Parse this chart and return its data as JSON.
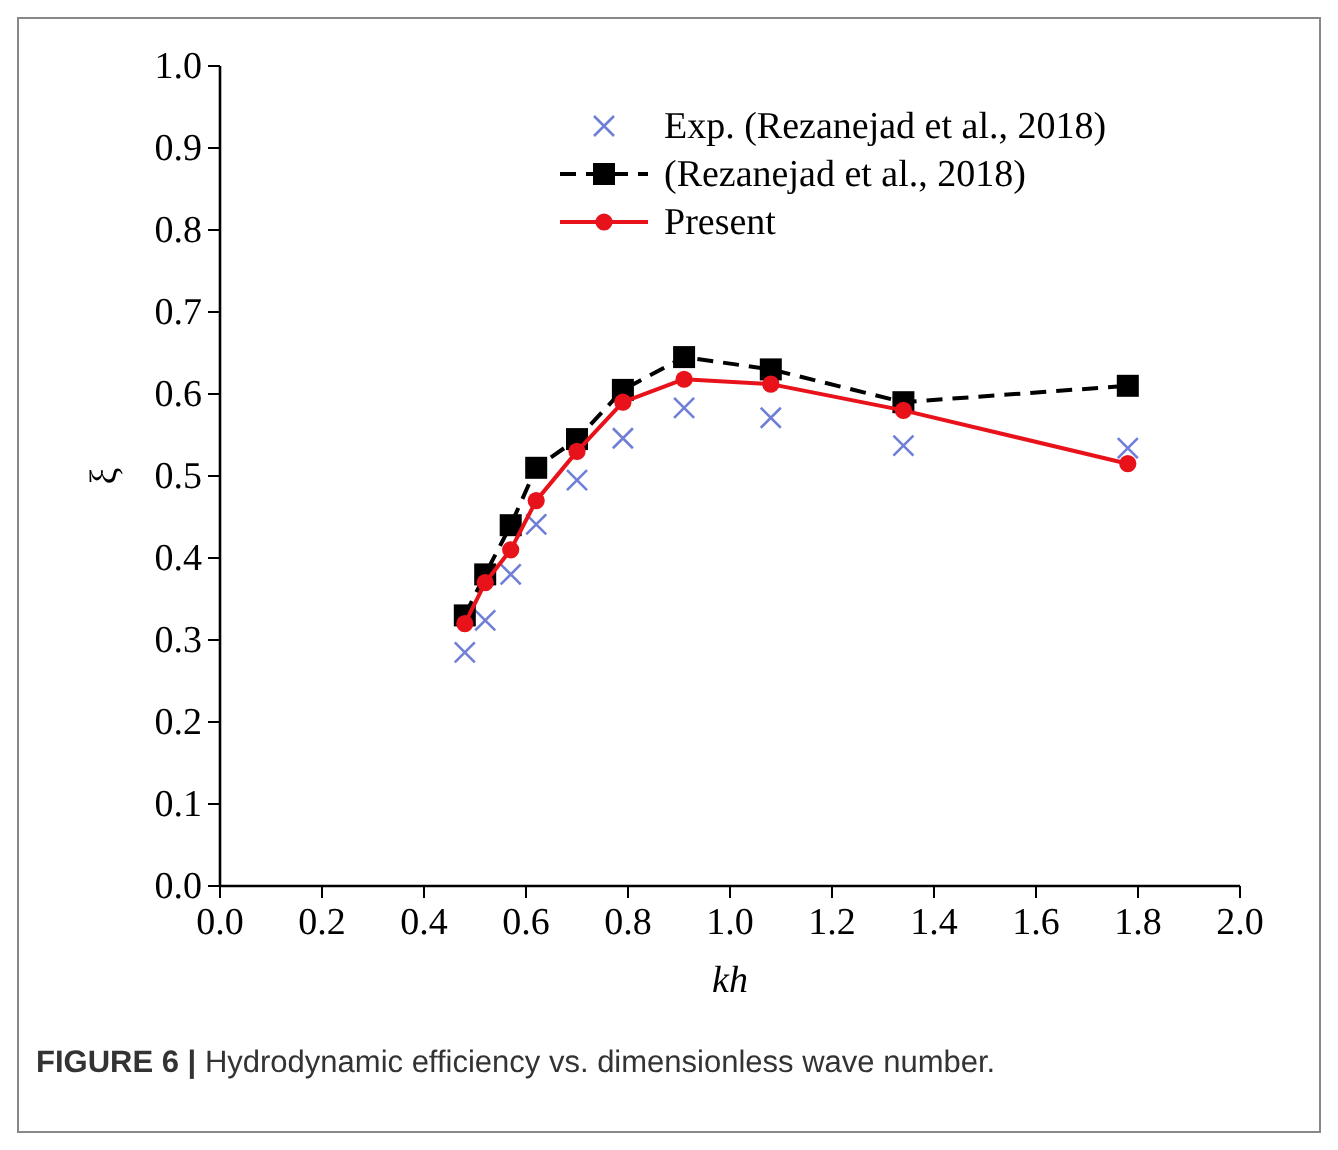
{
  "chart_data": {
    "type": "line",
    "xlabel": "kh",
    "ylabel": "ξ",
    "x": [
      0.48,
      0.52,
      0.57,
      0.62,
      0.7,
      0.79,
      0.91,
      1.08,
      1.34,
      1.78
    ],
    "series": [
      {
        "name": "Exp. (Rezanejad et al., 2018)",
        "type": "scatter",
        "color": "#6f7fd8",
        "marker": "cross",
        "values": [
          0.285,
          0.324,
          0.38,
          0.441,
          0.495,
          0.546,
          0.583,
          0.571,
          0.537,
          0.534
        ]
      },
      {
        "name": "(Rezanejad et al., 2018)",
        "color": "#000000",
        "marker": "square",
        "line_style": "dashed",
        "values": [
          0.33,
          0.38,
          0.44,
          0.51,
          0.545,
          0.605,
          0.645,
          0.63,
          0.59,
          0.61
        ]
      },
      {
        "name": "Present",
        "color": "#e8121b",
        "marker": "circle",
        "line_style": "solid",
        "values": [
          0.32,
          0.37,
          0.41,
          0.47,
          0.53,
          0.59,
          0.618,
          0.612,
          0.58,
          0.515
        ]
      }
    ],
    "xlim": [
      0,
      2
    ],
    "xticks": [
      {
        "value": 0,
        "label": "0.0"
      },
      0.2,
      0.4,
      0.6,
      0.8,
      {
        "value": 1,
        "label": "1.0"
      },
      1.2,
      1.4,
      1.6,
      1.8,
      {
        "value": 2,
        "label": "2.0"
      }
    ],
    "ylim": [
      0,
      1
    ],
    "yticks": [
      {
        "value": 0,
        "label": "0.0"
      },
      0.1,
      0.2,
      0.3,
      0.4,
      0.5,
      0.6,
      0.7,
      0.8,
      0.9,
      {
        "value": 1,
        "label": "1.0"
      }
    ],
    "grid": false,
    "legend": "top",
    "annotations": [
      "FIGURE 6 | Hydrodynamic efficiency vs. dimensionless wave number."
    ]
  }
}
